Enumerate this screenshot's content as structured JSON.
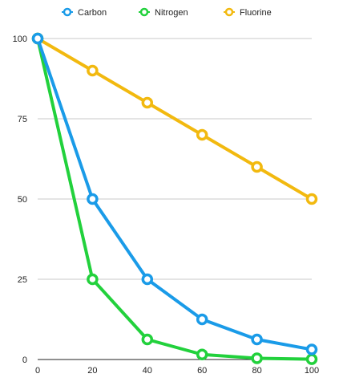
{
  "chart_data": {
    "type": "line",
    "title": "",
    "xlabel": "",
    "ylabel": "",
    "x": [
      0,
      20,
      40,
      60,
      80,
      100
    ],
    "series": [
      {
        "name": "Carbon",
        "color": "#1a9be8",
        "values": [
          100,
          50,
          25,
          12.5,
          6.25,
          3.125
        ]
      },
      {
        "name": "Nitrogen",
        "color": "#22d13c",
        "values": [
          100,
          25,
          6.25,
          1.5625,
          0.39,
          0.1
        ]
      },
      {
        "name": "Fluorine",
        "color": "#f2b90f",
        "values": [
          100,
          90,
          80,
          70,
          60,
          50
        ]
      }
    ],
    "xlim": [
      0,
      100
    ],
    "ylim": [
      0,
      100
    ],
    "xticks": [
      0,
      20,
      40,
      60,
      80,
      100
    ],
    "yticks": [
      0,
      25,
      50,
      75,
      100
    ],
    "xtick_labels": [
      "0",
      "20",
      "40",
      "60",
      "80",
      "100"
    ],
    "ytick_labels": [
      "0",
      "25",
      "50",
      "75",
      "100"
    ],
    "grid": true,
    "legend_position": "top"
  }
}
